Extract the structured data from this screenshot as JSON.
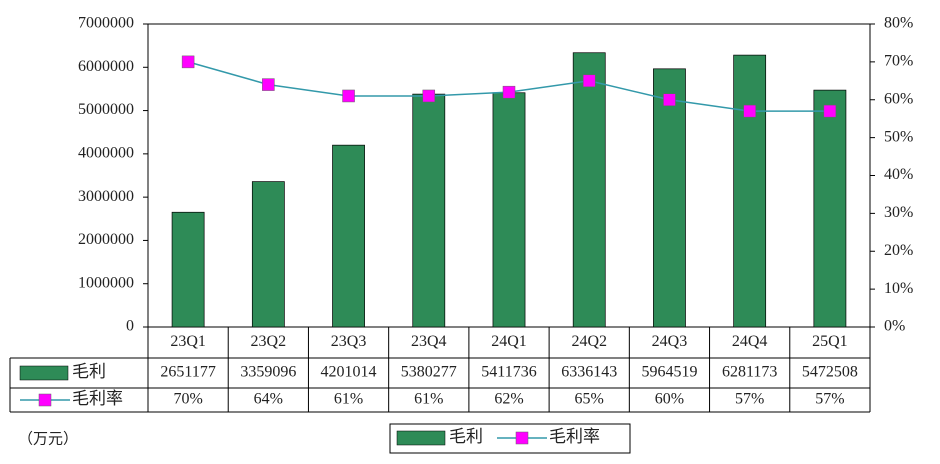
{
  "chart_data": {
    "type": "combo",
    "categories": [
      "23Q1",
      "23Q2",
      "23Q3",
      "23Q4",
      "24Q1",
      "24Q2",
      "24Q3",
      "24Q4",
      "25Q1"
    ],
    "series": [
      {
        "name": "毛利",
        "color": "#2e8b57",
        "values": [
          2651177,
          3359096,
          4201014,
          5380277,
          5411736,
          6336143,
          5964519,
          6281173,
          5472508
        ]
      },
      {
        "name": "毛利率",
        "color": "#3399aa",
        "marker_color": "#ff00ff",
        "axis": "y2",
        "values": [
          70,
          64,
          61,
          61,
          62,
          65,
          60,
          57,
          57
        ],
        "value_labels": [
          "70%",
          "64%",
          "61%",
          "61%",
          "62%",
          "65%",
          "60%",
          "57%",
          "57%"
        ]
      }
    ],
    "ylim": [
      0,
      7000000
    ],
    "yticks": [
      0,
      1000000,
      2000000,
      3000000,
      4000000,
      5000000,
      6000000,
      7000000
    ],
    "y2lim": [
      0,
      80
    ],
    "y2ticks": [
      {
        "value": 0,
        "label": "0%"
      },
      {
        "value": 10,
        "label": "10%"
      },
      {
        "value": 20,
        "label": "20%"
      },
      {
        "value": 30,
        "label": "30%"
      },
      {
        "value": 40,
        "label": "40%"
      },
      {
        "value": 50,
        "label": "50%"
      },
      {
        "value": 60,
        "label": "60%"
      },
      {
        "value": 70,
        "label": "70%"
      },
      {
        "value": 80,
        "label": "80%"
      }
    ],
    "data_table": true,
    "unit_note": "（万元）"
  }
}
